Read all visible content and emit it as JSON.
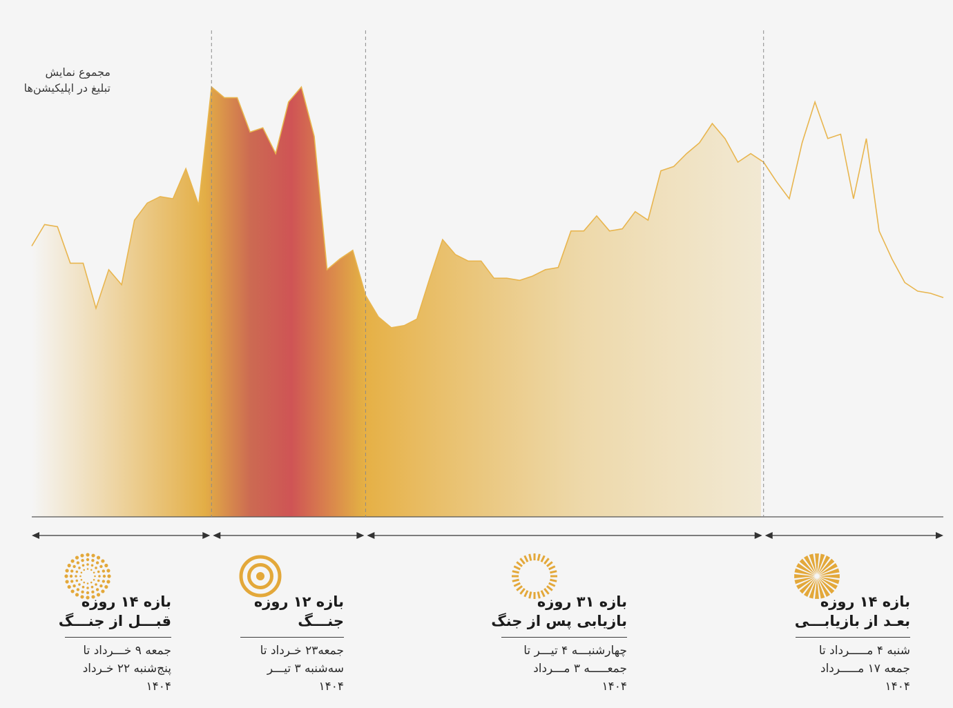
{
  "chart_data": {
    "type": "area",
    "title": "",
    "ylabel_lines": [
      "مجموع نمایش",
      "تبلیغ در اپلیکیشن‌ها"
    ],
    "xlabel": "",
    "ylim": [
      0,
      100
    ],
    "grid": false,
    "series": [
      {
        "values": [
          63,
          68,
          67.5,
          59,
          59,
          48.5,
          57.5,
          54,
          69,
          73,
          74.5,
          74,
          81,
          72.5,
          100,
          97.5,
          97.5,
          89.5,
          90.5,
          84.5,
          96.5,
          100,
          88.5,
          57.5,
          60,
          62,
          51.5,
          46.5,
          44,
          44.5,
          46,
          55.5,
          64.5,
          61,
          59.5,
          59.5,
          55.5,
          55.5,
          55,
          56,
          57.5,
          58,
          66.5,
          66.5,
          70,
          66.5,
          67,
          71,
          69,
          80.5,
          81.5,
          84.5,
          87,
          91.5,
          88,
          82.5,
          84.5,
          82.5,
          78,
          74,
          87,
          96.5,
          88,
          89,
          74,
          88,
          66.5,
          60,
          54.5,
          52.5,
          52,
          51
        ]
      }
    ],
    "periods": [
      {
        "id": "before",
        "start": 0,
        "end": 14,
        "title_lines": [
          "بازه ۱۴ روزه",
          "قبـــل از جنـــگ"
        ],
        "date_lines": [
          "جمعه ۹ خـــرداد تا",
          "پنج‌شنبه ۲۲ خـرداد",
          "۱۴۰۴"
        ],
        "icon": "dotted-circle-icon",
        "fill_color": "#e3ae46"
      },
      {
        "id": "war",
        "start": 14,
        "end": 26,
        "title_lines": [
          "بازه ۱۲ روزه",
          "جنـــگ"
        ],
        "date_lines": [
          "جمعه۲۳ خـرداد تا",
          "سه‌شنبه ۳ تیـــر",
          "۱۴۰۴"
        ],
        "icon": "concentric-rings-icon",
        "fill_color": "#cd5b55"
      },
      {
        "id": "recovery",
        "start": 26,
        "end": 57,
        "title_lines": [
          "بازه ۳۱ روزه",
          "بازیابی پس از جنگ"
        ],
        "date_lines": [
          "چهارشنبـــه ۴ تیـــر تا",
          "جمعـــــه ۳ مـــرداد",
          "۱۴۰۴"
        ],
        "icon": "dashed-ring-icon",
        "fill_color": "#e6b045"
      },
      {
        "id": "after",
        "start": 57,
        "end": 71,
        "title_lines": [
          "بازه ۱۴ روزه",
          "بعـد از بازیابـــی"
        ],
        "date_lines": [
          "شنبه ۴ مـــــرداد تا",
          "جمعه ۱۷ مـــــرداد",
          "۱۴۰۴"
        ],
        "icon": "sunburst-icon",
        "fill_color": "#e3ae46"
      }
    ],
    "colors": {
      "line": "#e8b54e",
      "baseline": "#555555",
      "divider": "#8a8a8a",
      "arrow": "#333333",
      "icon": "#e3a83a"
    }
  }
}
